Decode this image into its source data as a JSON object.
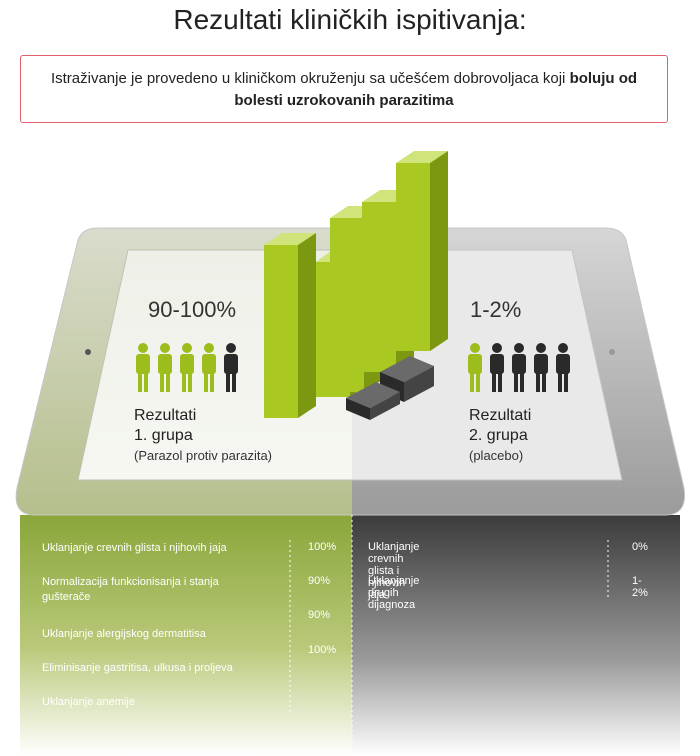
{
  "title": "Rezultati kliničkih ispitivanja:",
  "notice": {
    "text": "Istraživanje je provedeno u kliničkom okruženju sa učešćem dobrovoljaca koji",
    "bold": "boluju od bolesti uzrokovanih parazitima"
  },
  "group1": {
    "percent": "90-100%",
    "label1": "Rezultati",
    "label2": "1. grupa",
    "sub": "(Parazol protiv parazita)"
  },
  "group2": {
    "percent": "1-2%",
    "label1": "Rezultati",
    "label2": "2. grupa",
    "sub": "(placebo)"
  },
  "left_table": [
    {
      "label": "Uklanjanje crevnih glista i njihovih jaja",
      "value": "100%"
    },
    {
      "label": "Normalizacija funkcionisanja i stanja gušterače",
      "value": "90%"
    },
    {
      "label": "Uklanjanje alergijskog dermatitisa",
      "value": "90%"
    },
    {
      "label": "Eliminisanje gastritisa, ulkusa i proljeva",
      "value": "100%"
    },
    {
      "label": "Uklanjanje anemije",
      "value": ""
    }
  ],
  "right_table": [
    {
      "label": "Uklanjanje crevnih glista i njihovih jaja",
      "value": "0%"
    },
    {
      "label": "Uklanjanje drugih dijagnoza",
      "value": "1-2%"
    }
  ],
  "colors": {
    "green": "#9fc21c",
    "dark": "#2d2d2d",
    "left_panel": "#8aa63a",
    "right_panel": "#3f3f3f"
  }
}
